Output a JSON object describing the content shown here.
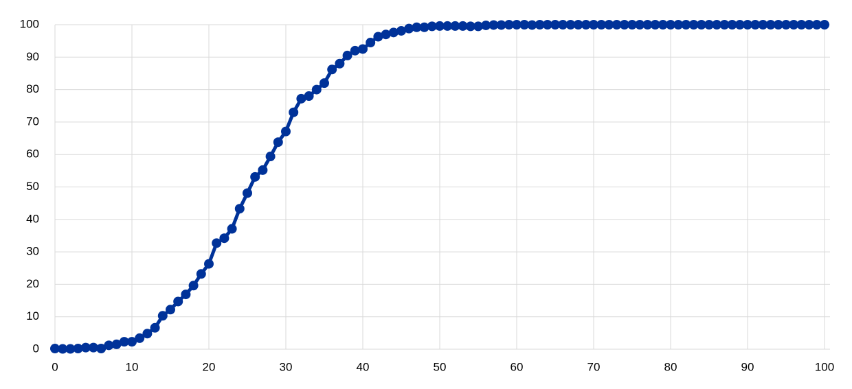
{
  "chart_data": {
    "type": "line",
    "x": [
      0,
      1,
      2,
      3,
      4,
      5,
      6,
      7,
      8,
      9,
      10,
      11,
      12,
      13,
      14,
      15,
      16,
      17,
      18,
      19,
      20,
      21,
      22,
      23,
      24,
      25,
      26,
      27,
      28,
      29,
      30,
      31,
      32,
      33,
      34,
      35,
      36,
      37,
      38,
      39,
      40,
      41,
      42,
      43,
      44,
      45,
      46,
      47,
      48,
      49,
      50,
      51,
      52,
      53,
      54,
      55,
      56,
      57,
      58,
      59,
      60,
      61,
      62,
      63,
      64,
      65,
      66,
      67,
      68,
      69,
      70,
      71,
      72,
      73,
      74,
      75,
      76,
      77,
      78,
      79,
      80,
      81,
      82,
      83,
      84,
      85,
      86,
      87,
      88,
      89,
      90,
      91,
      92,
      93,
      94,
      95,
      96,
      97,
      98,
      99,
      100
    ],
    "values": [
      0.2,
      0.1,
      0.1,
      0.2,
      0.5,
      0.5,
      0.2,
      1.2,
      1.5,
      2.3,
      2.3,
      3.4,
      4.8,
      6.6,
      10.3,
      12.2,
      14.7,
      16.9,
      19.6,
      23.2,
      26.3,
      32.7,
      34.2,
      37.1,
      43.3,
      48.1,
      53.1,
      55.2,
      59.4,
      63.8,
      67.1,
      73,
      77.2,
      78,
      80,
      82,
      86.2,
      88,
      90.5,
      92,
      92.5,
      94.5,
      96.3,
      97,
      97.6,
      98.1,
      98.8,
      99.2,
      99.2,
      99.5,
      99.6,
      99.6,
      99.6,
      99.6,
      99.5,
      99.5,
      99.8,
      99.9,
      99.9,
      100,
      100,
      100,
      99.9,
      100,
      100,
      100,
      100,
      100,
      100,
      100,
      100,
      100,
      100,
      100,
      100,
      100,
      100,
      100,
      100,
      100,
      100,
      100,
      100,
      100,
      100,
      100,
      100,
      100,
      100,
      100,
      100,
      100,
      100,
      100,
      100,
      100,
      100,
      100,
      100,
      100,
      100
    ],
    "color": "#003299",
    "xlim": [
      0,
      100
    ],
    "xticks": [
      0,
      10,
      20,
      30,
      40,
      50,
      60,
      70,
      80,
      90,
      100
    ],
    "ylim": [
      0,
      100
    ],
    "yticks": [
      0,
      10,
      20,
      30,
      40,
      50,
      60,
      70,
      80,
      90,
      100
    ],
    "grid": true
  }
}
